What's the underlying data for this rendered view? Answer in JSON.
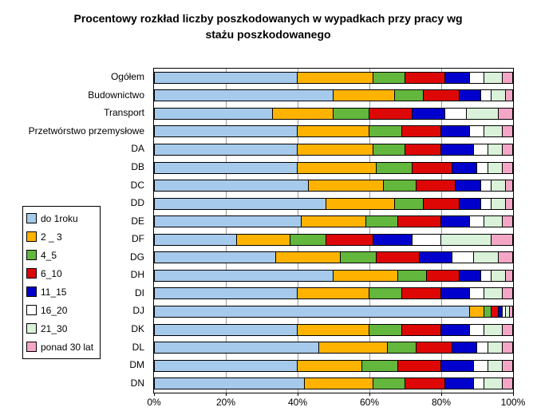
{
  "title": "Procentowy rozkład liczby poszkodowanych w wypadkach przy pracy wg stażu poszkodowanego",
  "chart_data": {
    "type": "bar",
    "stacked": true,
    "orientation": "horizontal",
    "unit": "%",
    "xlim": [
      0,
      100
    ],
    "grid": true,
    "legend_position": "left",
    "x_ticks": [
      "0%",
      "20%",
      "40%",
      "60%",
      "80%",
      "100%"
    ],
    "categories": [
      "Ogółem",
      "Budownictwo",
      "Transport",
      "Przetwórstwo przemysłowe",
      "DA",
      "DB",
      "DC",
      "DD",
      "DE",
      "DF",
      "DG",
      "DH",
      "DI",
      "DJ",
      "DK",
      "DL",
      "DM",
      "DN"
    ],
    "series": [
      {
        "name": "do 1roku",
        "color": "#A6CAEC",
        "values": [
          40,
          50,
          33,
          40,
          40,
          40,
          43,
          48,
          41,
          23,
          34,
          50,
          40,
          88,
          40,
          46,
          40,
          42
        ]
      },
      {
        "name": "2 _ 3",
        "color": "#FFB300",
        "values": [
          21,
          17,
          17,
          20,
          21,
          22,
          21,
          19,
          18,
          15,
          18,
          18,
          20,
          4,
          20,
          19,
          18,
          19
        ]
      },
      {
        "name": "4_5",
        "color": "#62B73C",
        "values": [
          9,
          8,
          10,
          9,
          9,
          10,
          9,
          8,
          9,
          10,
          10,
          8,
          9,
          2,
          9,
          8,
          10,
          9
        ]
      },
      {
        "name": "6_10",
        "color": "#DD0806",
        "values": [
          11,
          10,
          12,
          11,
          10,
          11,
          11,
          10,
          12,
          13,
          12,
          9,
          11,
          2,
          11,
          10,
          12,
          11
        ]
      },
      {
        "name": "11_15",
        "color": "#0000CC",
        "values": [
          7,
          6,
          9,
          8,
          9,
          7,
          7,
          6,
          8,
          11,
          9,
          6,
          8,
          1,
          8,
          7,
          9,
          8
        ]
      },
      {
        "name": "16_20",
        "color": "#FFFFFF",
        "values": [
          4,
          3,
          6,
          4,
          4,
          3,
          3,
          3,
          4,
          8,
          6,
          3,
          4,
          1,
          4,
          3,
          4,
          3
        ]
      },
      {
        "name": "21_30",
        "color": "#D9F2D9",
        "values": [
          5,
          4,
          9,
          5,
          4,
          4,
          4,
          4,
          5,
          14,
          7,
          4,
          5,
          1,
          5,
          4,
          4,
          5
        ]
      },
      {
        "name": "ponad 30 lat",
        "color": "#F4A6C6",
        "values": [
          3,
          2,
          4,
          3,
          3,
          3,
          2,
          2,
          3,
          6,
          4,
          2,
          3,
          1,
          3,
          3,
          3,
          3
        ]
      }
    ]
  }
}
